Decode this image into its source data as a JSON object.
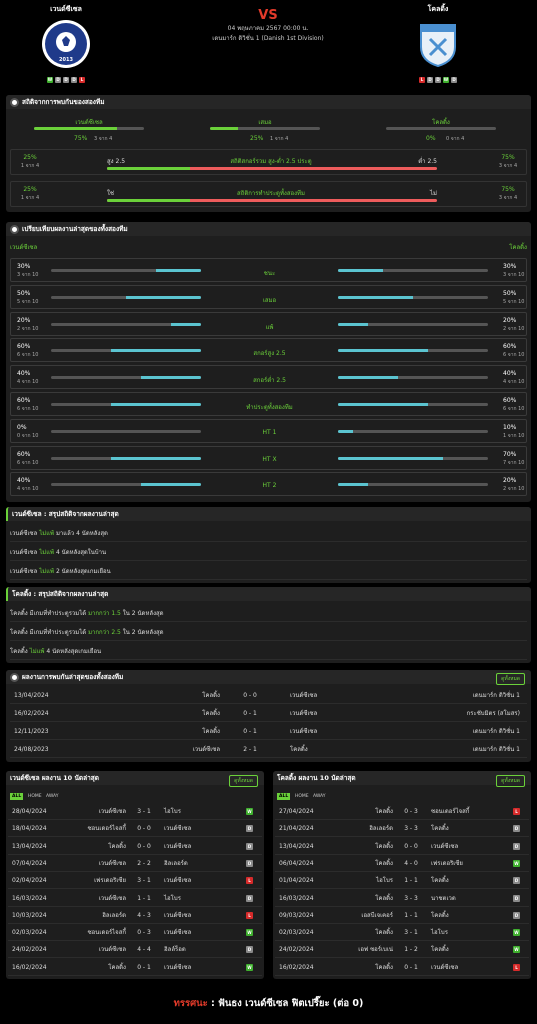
{
  "header": {
    "home_name": "เวนด์ซีเซล",
    "away_name": "โคลดิ้ง",
    "vs": "VS",
    "date": "04 พฤษภาคม 2567 00:00 น.",
    "league": "เดนมาร์ก ดิวิชั่น 1 (Danish 1st Division)",
    "home_logo_text": "VENDSYSSEL FF",
    "home_logo_year": "2013",
    "away_logo_text": "KOLDING IF",
    "home_form": [
      "W",
      "D",
      "D",
      "D",
      "L"
    ],
    "away_form": [
      "L",
      "D",
      "D",
      "W",
      "D"
    ]
  },
  "h2h_stats": {
    "title": "สถิติจากการพบกันของสองทีม",
    "cols": [
      {
        "label": "เวนด์ซีเซล",
        "pct": "75%",
        "sub": "3 จาก 4",
        "value": 0.75
      },
      {
        "label": "เสมอ",
        "pct": "25%",
        "sub": "1 จาก 4",
        "value": 0.25
      },
      {
        "label": "โคลดิ้ง",
        "pct": "0%",
        "sub": "0 จาก 4",
        "value": 0
      }
    ],
    "ou": {
      "left_pct": "25%",
      "left_sub": "1 จาก 4",
      "left_label": "สูง 2.5",
      "center": "สถิติสกอร์รวม สูง-ต่ำ 2.5 ประตู",
      "right_label": "ต่ำ 2.5",
      "right_pct": "75%",
      "right_sub": "3 จาก 4",
      "left_value": 0.25
    },
    "btts": {
      "left_pct": "25%",
      "left_sub": "1 จาก 4",
      "left_label": "ใช่",
      "center": "สถิติการทำประตูทั้งสองทีม",
      "right_label": "ไม่",
      "right_pct": "75%",
      "right_sub": "3 จาก 4",
      "left_value": 0.25
    }
  },
  "compare": {
    "title": "เปรียบเทียบผลงานล่าสุดของทั้งสองทีม",
    "home": "เวนด์ซีเซล",
    "away": "โคลดิ้ง",
    "rows": [
      {
        "label": "ชนะ",
        "lp": "30%",
        "ls": "3 จาก 10",
        "lv": 0.3,
        "rp": "30%",
        "rs": "3 จาก 10",
        "rv": 0.3
      },
      {
        "label": "เสมอ",
        "lp": "50%",
        "ls": "5 จาก 10",
        "lv": 0.5,
        "rp": "50%",
        "rs": "5 จาก 10",
        "rv": 0.5
      },
      {
        "label": "แพ้",
        "lp": "20%",
        "ls": "2 จาก 10",
        "lv": 0.2,
        "rp": "20%",
        "rs": "2 จาก 10",
        "rv": 0.2
      },
      {
        "label": "สกอร์สูง 2.5",
        "lp": "60%",
        "ls": "6 จาก 10",
        "lv": 0.6,
        "rp": "60%",
        "rs": "6 จาก 10",
        "rv": 0.6
      },
      {
        "label": "สกอร์ต่ำ 2.5",
        "lp": "40%",
        "ls": "4 จาก 10",
        "lv": 0.4,
        "rp": "40%",
        "rs": "4 จาก 10",
        "rv": 0.4
      },
      {
        "label": "ทำประตูทั้งสองทีม",
        "lp": "60%",
        "ls": "6 จาก 10",
        "lv": 0.6,
        "rp": "60%",
        "rs": "6 จาก 10",
        "rv": 0.6
      },
      {
        "label": "HT 1",
        "lp": "0%",
        "ls": "0 จาก 10",
        "lv": 0,
        "rp": "10%",
        "rs": "1 จาก 10",
        "rv": 0.1
      },
      {
        "label": "HT X",
        "lp": "60%",
        "ls": "6 จาก 10",
        "lv": 0.6,
        "rp": "70%",
        "rs": "7 จาก 10",
        "rv": 0.7
      },
      {
        "label": "HT 2",
        "lp": "40%",
        "ls": "4 จาก 10",
        "lv": 0.4,
        "rp": "20%",
        "rs": "2 จาก 10",
        "rv": 0.2
      }
    ]
  },
  "home_summary": {
    "title": "เวนด์ซีเซล : สรุปสถิติจากผลงานล่าสุด",
    "lines": [
      {
        "team": "เวนด์ซีเซล",
        "hl": "ไม่แพ้",
        "rest": "มาแล้ว 4 นัดหลังสุด"
      },
      {
        "team": "เวนด์ซีเซล",
        "hl": "ไม่แพ้",
        "rest": "4 นัดหลังสุดในบ้าน"
      },
      {
        "team": "เวนด์ซีเซล",
        "hl": "ไม่แพ้",
        "rest": "2 นัดหลังสุดเกมเยือน"
      }
    ]
  },
  "away_summary": {
    "title": "โคลดิ้ง : สรุปสถิติจากผลงานล่าสุด",
    "lines": [
      {
        "team": "โคลดิ้ง",
        "pre": "มีเกมที่ทำประตูรวมได้",
        "hl": "มากกว่า 1.5",
        "rest": "ใน 2 นัดหลังสุด"
      },
      {
        "team": "โคลดิ้ง",
        "pre": "มีเกมที่ทำประตูรวมได้",
        "hl": "มากกว่า 2.5",
        "rest": "ใน 2 นัดหลังสุด"
      },
      {
        "team": "โคลดิ้ง",
        "pre": "",
        "hl": "ไม่แพ้",
        "rest": "4 นัดหลังสุดเกมเยือน"
      }
    ]
  },
  "h2h_list": {
    "title": "ผลงานการพบกันล่าสุดของทั้งสองทีม",
    "button": "ดูทั้งหมด",
    "rows": [
      {
        "date": "13/04/2024",
        "home": "โคลดิ้ง",
        "score": "0 - 0",
        "away": "เวนด์ซีเซล",
        "league": "เดนมาร์ก ดิวิชั่น 1"
      },
      {
        "date": "16/02/2024",
        "home": "โคลดิ้ง",
        "score": "0 - 1",
        "away": "เวนด์ซีเซล",
        "league": "กระชับมิตร (สโมสร)"
      },
      {
        "date": "12/11/2023",
        "home": "โคลดิ้ง",
        "score": "0 - 1",
        "away": "เวนด์ซีเซล",
        "league": "เดนมาร์ก ดิวิชั่น 1"
      },
      {
        "date": "24/08/2023",
        "home": "เวนด์ซีเซล",
        "score": "2 - 1",
        "away": "โคลดิ้ง",
        "league": "เดนมาร์ก ดิวิชั่น 1"
      }
    ]
  },
  "home_last10": {
    "title": "เวนด์ซีเซล ผลงาน 10 นัดล่าสุด",
    "button": "ดูทั้งหมด",
    "tabs": [
      "ALL",
      "HOME",
      "AWAY"
    ],
    "rows": [
      {
        "date": "28/04/2024",
        "home": "เวนด์ซีเซล",
        "score": "3 - 1",
        "away": "ไฮโบร",
        "res": "W"
      },
      {
        "date": "18/04/2024",
        "home": "ซอนเดอร์ไจสกี้",
        "score": "0 - 0",
        "away": "เวนด์ซีเซล",
        "res": "D"
      },
      {
        "date": "13/04/2024",
        "home": "โคลดิ้ง",
        "score": "0 - 0",
        "away": "เวนด์ซีเซล",
        "res": "D"
      },
      {
        "date": "07/04/2024",
        "home": "เวนด์ซีเซล",
        "score": "2 - 2",
        "away": "ฮิลเลอร์ด",
        "res": "D"
      },
      {
        "date": "02/04/2024",
        "home": "เฟรเดอริเซีย",
        "score": "3 - 1",
        "away": "เวนด์ซีเซล",
        "res": "L"
      },
      {
        "date": "16/03/2024",
        "home": "เวนด์ซีเซล",
        "score": "1 - 1",
        "away": "ไฮโบร",
        "res": "D"
      },
      {
        "date": "10/03/2024",
        "home": "ฮิลเลอร์ด",
        "score": "4 - 3",
        "away": "เวนด์ซีเซล",
        "res": "L"
      },
      {
        "date": "02/03/2024",
        "home": "ซอนเดอร์ไจสกี้",
        "score": "0 - 3",
        "away": "เวนด์ซีเซล",
        "res": "W"
      },
      {
        "date": "24/02/2024",
        "home": "เวนด์ซีเซล",
        "score": "4 - 4",
        "away": "ฮิลล์ร็อด",
        "res": "D"
      },
      {
        "date": "16/02/2024",
        "home": "โคลดิ้ง",
        "score": "0 - 1",
        "away": "เวนด์ซีเซล",
        "res": "W"
      }
    ]
  },
  "away_last10": {
    "title": "โคลดิ้ง ผลงาน 10 นัดล่าสุด",
    "button": "ดูทั้งหมด",
    "tabs": [
      "ALL",
      "HOME",
      "AWAY"
    ],
    "rows": [
      {
        "date": "27/04/2024",
        "home": "โคลดิ้ง",
        "score": "0 - 3",
        "away": "ซอนเดอร์ไจสกี้",
        "res": "L"
      },
      {
        "date": "21/04/2024",
        "home": "ฮิลเลอร์ด",
        "score": "3 - 3",
        "away": "โคลดิ้ง",
        "res": "D"
      },
      {
        "date": "13/04/2024",
        "home": "โคลดิ้ง",
        "score": "0 - 0",
        "away": "เวนด์ซีเซล",
        "res": "D"
      },
      {
        "date": "06/04/2024",
        "home": "โคลดิ้ง",
        "score": "4 - 0",
        "away": "เฟรเดอริเซีย",
        "res": "W"
      },
      {
        "date": "01/04/2024",
        "home": "ไฮโบร",
        "score": "1 - 1",
        "away": "โคลดิ้ง",
        "res": "D"
      },
      {
        "date": "16/03/2024",
        "home": "โคลดิ้ง",
        "score": "3 - 3",
        "away": "นาชตเวด",
        "res": "D"
      },
      {
        "date": "09/03/2024",
        "home": "เอสบีเจเคอร์",
        "score": "1 - 1",
        "away": "โคลดิ้ง",
        "res": "D"
      },
      {
        "date": "02/03/2024",
        "home": "โคลดิ้ง",
        "score": "3 - 1",
        "away": "ไฮโบร",
        "res": "W"
      },
      {
        "date": "24/02/2024",
        "home": "เอฟ ซอร์เบเน่",
        "score": "1 - 2",
        "away": "โคลดิ้ง",
        "res": "W"
      },
      {
        "date": "16/02/2024",
        "home": "โคลดิ้ง",
        "score": "0 - 1",
        "away": "เวนด์ซีเซล",
        "res": "L"
      }
    ]
  },
  "footer": {
    "label": "ทรรศนะ",
    "text": ": ฟันธง เวนด์ซีเซล ฟิตเปรี๊ยะ (ต่อ 0)"
  },
  "colors": {
    "green": "#6bd13a",
    "red": "#ee5c5c",
    "cyan": "#5bc4d0",
    "win": "#3fb02e",
    "draw": "#8a8a8a",
    "loss": "#d62a2a"
  }
}
